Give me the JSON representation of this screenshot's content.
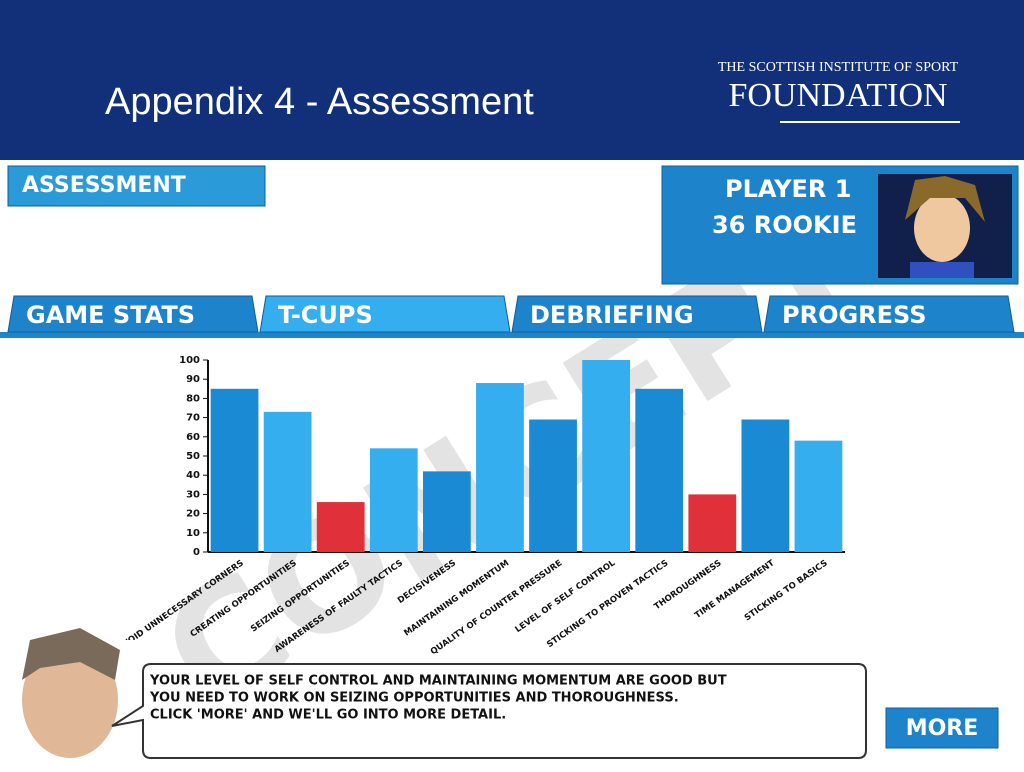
{
  "header": {
    "title": "Appendix 4 - Assessment",
    "logo_line1": "THE SCOTTISH INSTITUTE OF SPORT",
    "logo_line2": "FOUNDATION"
  },
  "ui": {
    "section_title": "ASSESSMENT",
    "player_name": "PLAYER 1",
    "player_rank": "36 ROOKIE",
    "tabs": [
      "GAME STATS",
      "T-CUPS",
      "DEBRIEFING",
      "PROGRESS"
    ],
    "watermark": "CONCEPT",
    "message": [
      "YOUR LEVEL OF SELF CONTROL AND MAINTAINING MOMENTUM ARE GOOD BUT",
      "YOU NEED TO WORK ON SEIZING OPPORTUNITIES AND THOROUGHNESS.",
      "CLICK 'MORE' AND WE'LL GO INTO MORE DETAIL."
    ],
    "more_button": "MORE"
  },
  "chart_data": {
    "type": "bar",
    "categories": [
      "AVOID UNNECESSARY CORNERS",
      "CREATING OPPORTUNITIES",
      "SEIZING OPPORTUNITIES",
      "AWARENESS OF FAULTY TACTICS",
      "DECISIVENESS",
      "MAINTAINING MOMENTUM",
      "QUALITY OF COUNTER PRESSURE",
      "LEVEL OF SELF CONTROL",
      "STICKING TO PROVEN TACTICS",
      "THOROUGHNESS",
      "TIME MANAGEMENT",
      "STICKING TO BASICS"
    ],
    "values": [
      85,
      73,
      26,
      54,
      42,
      88,
      69,
      100,
      85,
      30,
      69,
      58
    ],
    "colors": [
      "#1a8ad4",
      "#35aef0",
      "#e0303a",
      "#35aef0",
      "#1a8ad4",
      "#35aef0",
      "#1a8ad4",
      "#35aef0",
      "#1a8ad4",
      "#e0303a",
      "#1a8ad4",
      "#35aef0"
    ],
    "ylim": [
      0,
      100
    ],
    "yticks": [
      0,
      10,
      20,
      30,
      40,
      50,
      60,
      70,
      80,
      90,
      100
    ]
  }
}
